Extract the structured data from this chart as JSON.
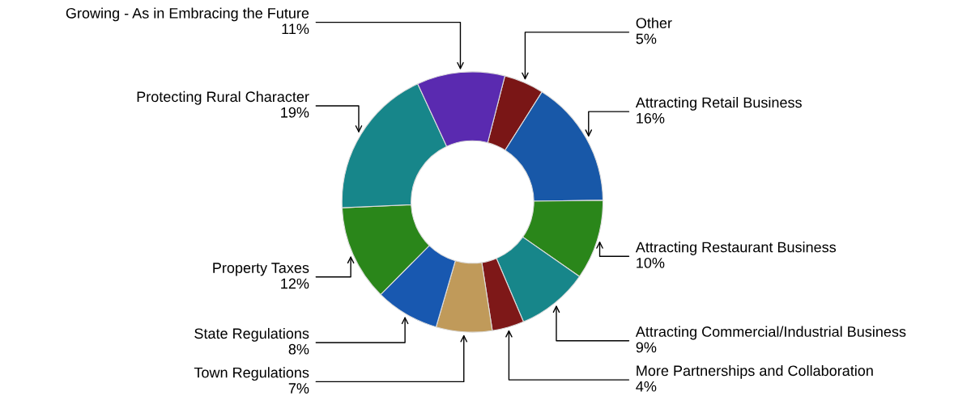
{
  "chart_data": {
    "type": "donut",
    "categories": [
      "Other",
      "Attracting Retail Business",
      "Attracting Restaurant Business",
      "Attracting Commercial/Industrial Business",
      "More Partnerships and Collaboration",
      "Town Regulations",
      "State Regulations",
      "Property Taxes",
      "Protecting Rural Character",
      "Growing - As in Embracing the Future"
    ],
    "values": [
      5,
      16,
      10,
      9,
      4,
      7,
      8,
      12,
      19,
      11
    ],
    "value_labels": [
      "5%",
      "16%",
      "10%",
      "9%",
      "4%",
      "7%",
      "8%",
      "12%",
      "19%",
      "11%"
    ],
    "colors": [
      "#7a1616",
      "#1858a8",
      "#2a861a",
      "#17868a",
      "#7e1818",
      "#c09a5a",
      "#1858b0",
      "#2a861a",
      "#17868a",
      "#5a2ab0"
    ],
    "legend": false
  }
}
